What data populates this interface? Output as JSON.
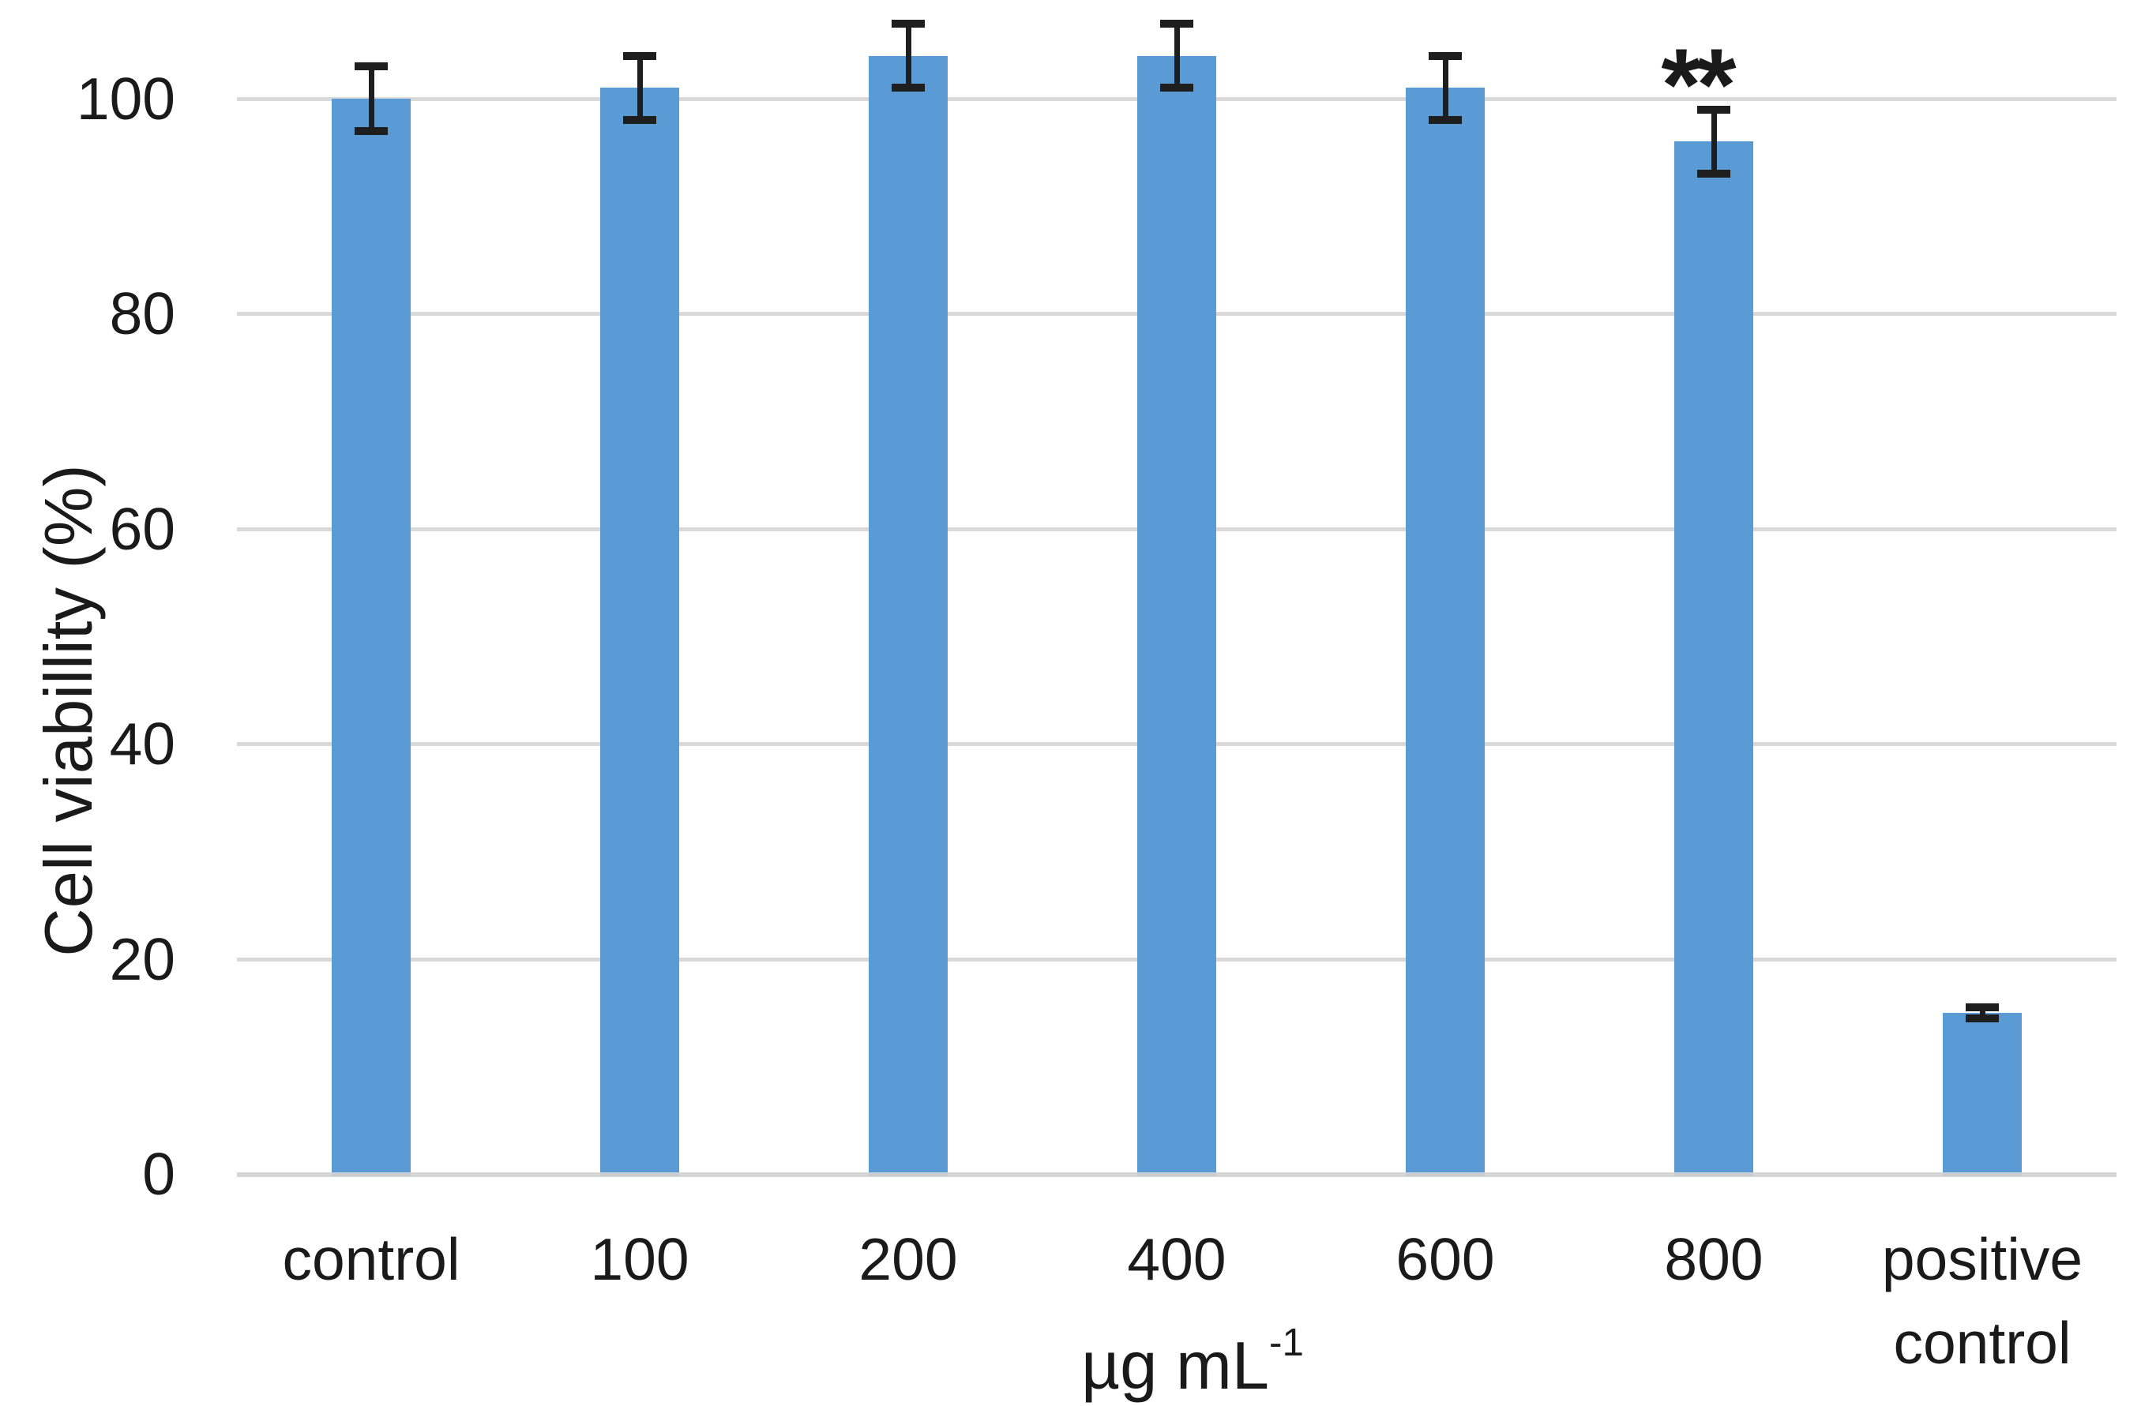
{
  "chart_data": {
    "type": "bar",
    "title": "",
    "categories": [
      "control",
      "100",
      "200",
      "400",
      "600",
      "800",
      "positive control"
    ],
    "values": [
      100,
      101,
      104,
      104,
      101,
      96,
      15
    ],
    "error_bars": [
      3,
      3,
      3,
      3,
      3,
      3,
      0.5
    ],
    "ylabel": "Cell viabillity (%)",
    "xlabel_base": "µg mL",
    "xlabel_exponent": "-1",
    "yticks": [
      0,
      20,
      40,
      60,
      80,
      100
    ],
    "ylim": [
      0,
      109
    ],
    "grid": true,
    "legend": "none",
    "bar_color": "#5b9bd5",
    "grid_color": "#d9d9d9",
    "axis_line_color": "#d2d2d2",
    "error_bar_color": "#1e1e1e",
    "text_color": "#1a1a1a",
    "background_color": "#ffffff",
    "annotations": [
      {
        "category": "800",
        "text": "**"
      }
    ]
  }
}
